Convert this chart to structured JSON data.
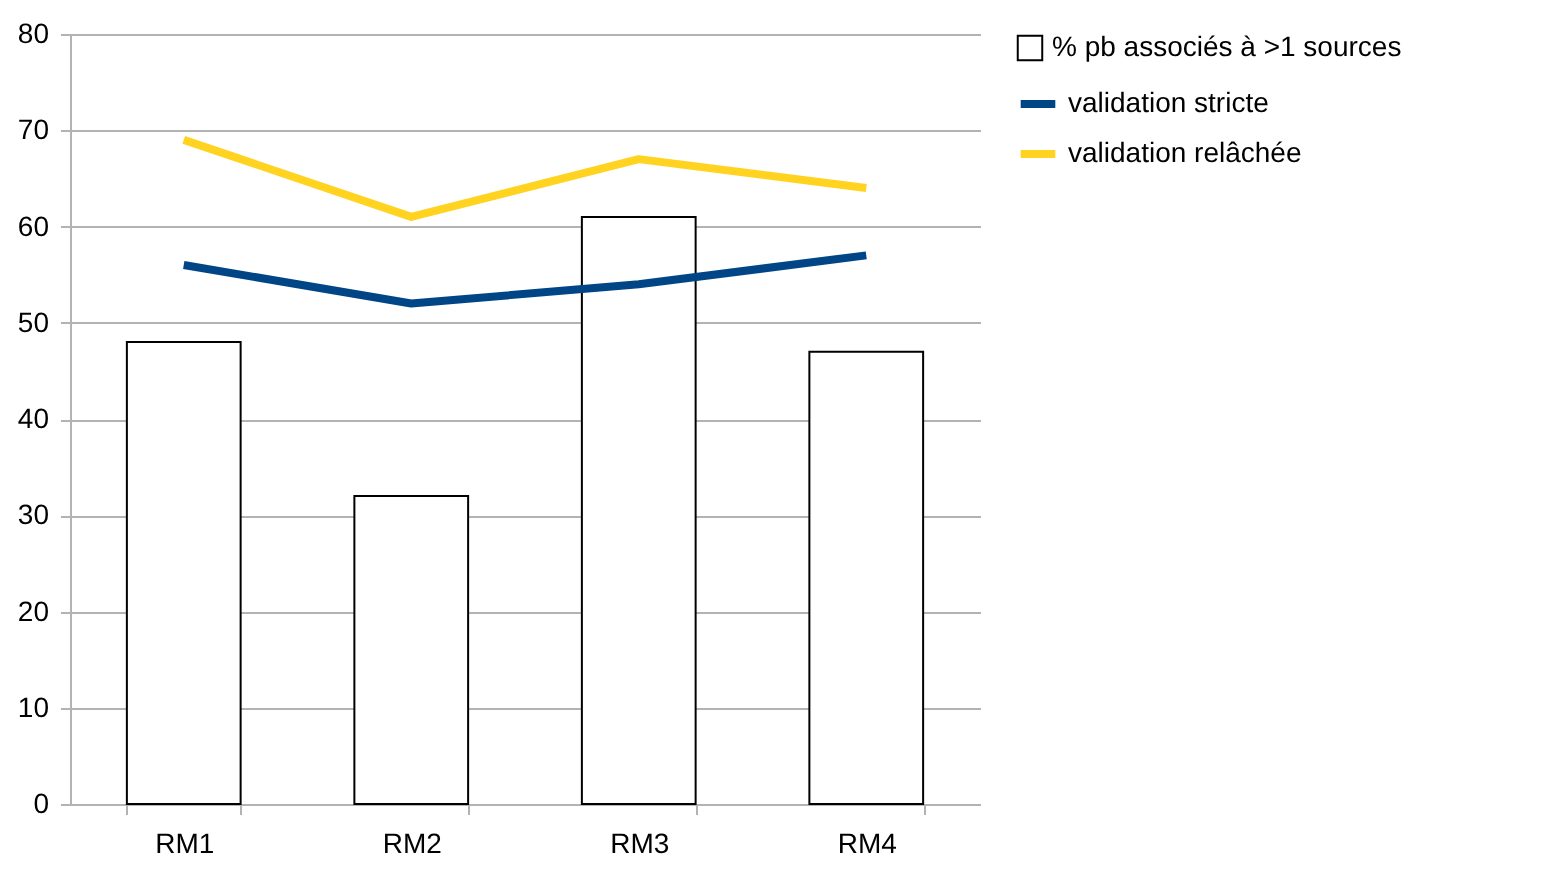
{
  "chart_data": {
    "type": "bar",
    "categories": [
      "RM1",
      "RM2",
      "RM3",
      "RM4"
    ],
    "series": [
      {
        "name": "% pb associés à >1 sources",
        "color": "#ffffff",
        "values": [
          48,
          32,
          61,
          47
        ]
      },
      {
        "name": "validation stricte",
        "type": "line",
        "color": "#004586",
        "values": [
          56,
          52,
          54,
          57
        ]
      },
      {
        "name": "validation relâchée",
        "type": "line",
        "color": "#ffd320",
        "values": [
          69,
          61,
          67,
          64
        ]
      }
    ],
    "ylim": [
      0,
      80
    ],
    "yticks": [
      0,
      10,
      20,
      30,
      40,
      50,
      60,
      70,
      80
    ],
    "grid": "y",
    "legend": "right"
  }
}
